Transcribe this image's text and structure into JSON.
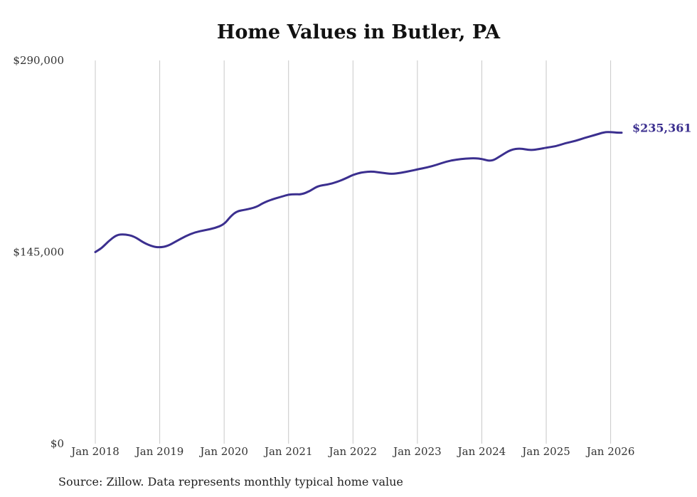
{
  "chart_data": {
    "type": "line",
    "title": "Home Values in Butler, PA",
    "xlabel": "",
    "ylabel": "",
    "ylim": [
      0,
      290000
    ],
    "y_ticks": [
      {
        "value": 0,
        "label": "$0"
      },
      {
        "value": 145000,
        "label": "$145,000"
      },
      {
        "value": 290000,
        "label": "$290,000"
      }
    ],
    "x_ticks": [
      {
        "value": 2018,
        "label": "Jan 2018"
      },
      {
        "value": 2019,
        "label": "Jan 2019"
      },
      {
        "value": 2020,
        "label": "Jan 2020"
      },
      {
        "value": 2021,
        "label": "Jan 2021"
      },
      {
        "value": 2022,
        "label": "Jan 2022"
      },
      {
        "value": 2023,
        "label": "Jan 2023"
      },
      {
        "value": 2024,
        "label": "Jan 2024"
      },
      {
        "value": 2025,
        "label": "Jan 2025"
      },
      {
        "value": 2026,
        "label": "Jan 2026"
      }
    ],
    "xlim": [
      2018,
      2026.17
    ],
    "grid": {
      "vertical": true,
      "horizontal": false
    },
    "series": [
      {
        "name": "Typical home value",
        "color": "#3b2f8f",
        "x": [
          2018.0,
          2018.1,
          2018.2,
          2018.33,
          2018.45,
          2018.6,
          2018.75,
          2018.9,
          2019.0,
          2019.12,
          2019.25,
          2019.4,
          2019.55,
          2019.7,
          2019.85,
          2020.0,
          2020.1,
          2020.2,
          2020.33,
          2020.5,
          2020.6,
          2020.75,
          2020.9,
          2021.0,
          2021.1,
          2021.2,
          2021.33,
          2021.45,
          2021.6,
          2021.75,
          2021.9,
          2022.0,
          2022.15,
          2022.3,
          2022.45,
          2022.6,
          2022.75,
          2022.9,
          2023.0,
          2023.15,
          2023.3,
          2023.45,
          2023.6,
          2023.75,
          2023.9,
          2024.0,
          2024.15,
          2024.3,
          2024.45,
          2024.6,
          2024.75,
          2024.9,
          2025.0,
          2025.15,
          2025.3,
          2025.45,
          2025.6,
          2025.75,
          2025.9,
          2026.0,
          2026.1,
          2026.17
        ],
        "values": [
          145000,
          148000,
          153000,
          158000,
          158500,
          157000,
          152000,
          149000,
          148500,
          149500,
          153000,
          157000,
          160000,
          161500,
          163000,
          166000,
          172000,
          176000,
          177000,
          179000,
          182000,
          185000,
          187000,
          188500,
          188800,
          188600,
          191000,
          195000,
          196000,
          198000,
          201000,
          203500,
          205500,
          206000,
          205000,
          204000,
          205000,
          206500,
          207500,
          209000,
          211000,
          213500,
          215000,
          215800,
          216000,
          215500,
          213500,
          218000,
          222500,
          223500,
          222000,
          223000,
          224000,
          225000,
          227500,
          229000,
          231500,
          233500,
          235700,
          235800,
          235361,
          235361
        ],
        "end_label": "$235,361"
      }
    ]
  },
  "source_note": "Source: Zillow. Data represents monthly typical home value"
}
